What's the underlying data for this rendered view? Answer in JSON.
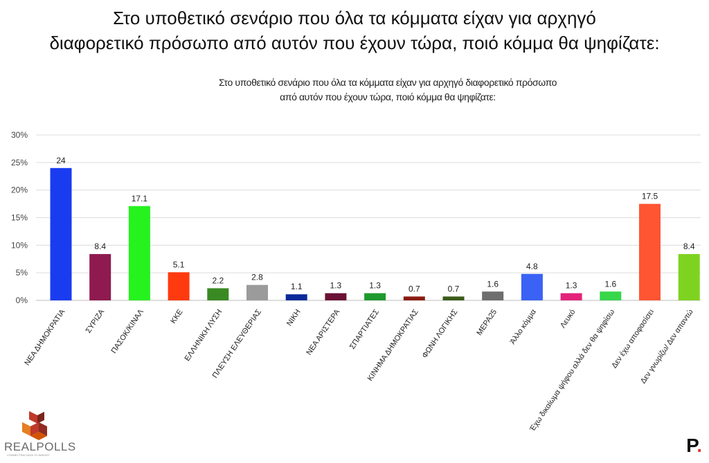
{
  "header": {
    "title_line1": "Στο υποθετικό σενάριο που όλα τα κόμματα είχαν για αρχηγό",
    "title_line2": "διαφορετικό πρόσωπο από αυτόν που έχουν τώρα, ποιό κόμμα θα ψηφίζατε:"
  },
  "chart_data": {
    "type": "bar",
    "title_lines": [
      "Στο υποθετικό σενάριο που όλα τα κόμματα είχαν για αρχηγό διαφορετικό πρόσωπο",
      "από αυτόν που έχουν τώρα, ποιό κόμμα θα ψηφίζατε:"
    ],
    "xlabel": "",
    "ylabel": "",
    "ylim": [
      0,
      30
    ],
    "yticks": [
      "0%",
      "5%",
      "10%",
      "15%",
      "20%",
      "25%",
      "30%"
    ],
    "grid": true,
    "categories": [
      "ΝΕΑ ΔΗΜΟΚΡΑΤΙΑ",
      "ΣΥΡΙΖΑ",
      "ΠΑΣΟΚ/ΚΙΝΑΛ",
      "ΚΚΕ",
      "ΕΛΛΗΝΙΚΗ ΛΥΣΗ",
      "ΠΛΕΥΣΗ ΕΛΕΥΘΕΡΙΑΣ",
      "ΝΙΚΗ",
      "ΝΕΑ ΑΡΙΣΤΕΡΑ",
      "ΣΠΑΡΤΙΑΤΕΣ",
      "ΚΙΝΗΜΑ ΔΗΜΟΚΡΑΤΙΑΣ",
      "ΦΩΝΗ ΛΟΓΙΚΗΣ",
      "ΜΕΡΑ25",
      "Άλλο κόμμα",
      "Λευκό",
      "Έχω δικαίωμα ψήφου αλλά δεν θα ψηφίσω",
      "Δεν έχω αποφασίσει",
      "Δεν γνωρίζω/ Δεν απαντώ"
    ],
    "values": [
      24,
      8.4,
      17.1,
      5.1,
      2.2,
      2.8,
      1.1,
      1.3,
      1.3,
      0.7,
      0.7,
      1.6,
      4.8,
      1.3,
      1.6,
      17.5,
      8.4
    ],
    "value_labels": [
      "24",
      "8.4",
      "17.1",
      "5.1",
      "2.2",
      "2.8",
      "1.1",
      "1.3",
      "1.3",
      "0.7",
      "0.7",
      "1.6",
      "4.8",
      "1.3",
      "1.6",
      "17.5",
      "8.4"
    ],
    "colors": [
      "#1a3cf0",
      "#8f1a4f",
      "#26f21e",
      "#ff3a0f",
      "#3a8a23",
      "#9b9b9b",
      "#0a2a9a",
      "#6a1135",
      "#1f9a2e",
      "#8a1a12",
      "#3a5a1a",
      "#6e6e6e",
      "#3a62f5",
      "#e3237a",
      "#38d64a",
      "#ff5533",
      "#7ed321"
    ]
  },
  "branding": {
    "logo_text": "REALPOLLS",
    "logo_subtext": "CONNECTING DATA TO INSIGHT",
    "publisher_mark": "P",
    "publisher_dot": ".",
    "logo_colors": [
      "#c0392b",
      "#7b241c",
      "#e67e22",
      "#d35400"
    ]
  }
}
